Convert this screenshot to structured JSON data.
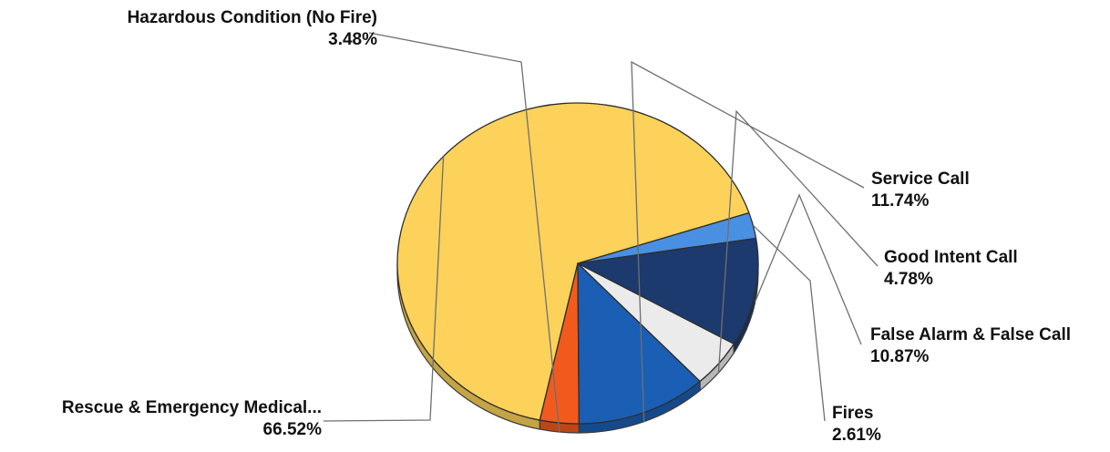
{
  "chart_data": {
    "type": "pie",
    "title": "",
    "slices": [
      {
        "label": "Fires",
        "value": 2.61,
        "display": "2.61%",
        "color": "#4a90e2"
      },
      {
        "label": "Rescue & Emergency Medical...",
        "value": 66.52,
        "display": "66.52%",
        "color": "#fdd25a"
      },
      {
        "label": "Hazardous Condition (No Fire)",
        "value": 3.48,
        "display": "3.48%",
        "color": "#f25a1d"
      },
      {
        "label": "Service Call",
        "value": 11.74,
        "display": "11.74%",
        "color": "#1a5fb4"
      },
      {
        "label": "Good Intent Call",
        "value": 4.78,
        "display": "4.78%",
        "color": "#ebebeb"
      },
      {
        "label": "False Alarm & False Call",
        "value": 10.87,
        "display": "10.87%",
        "color": "#1c3a6e"
      }
    ],
    "legend": "none",
    "label_style": "callout labels with leader lines"
  }
}
